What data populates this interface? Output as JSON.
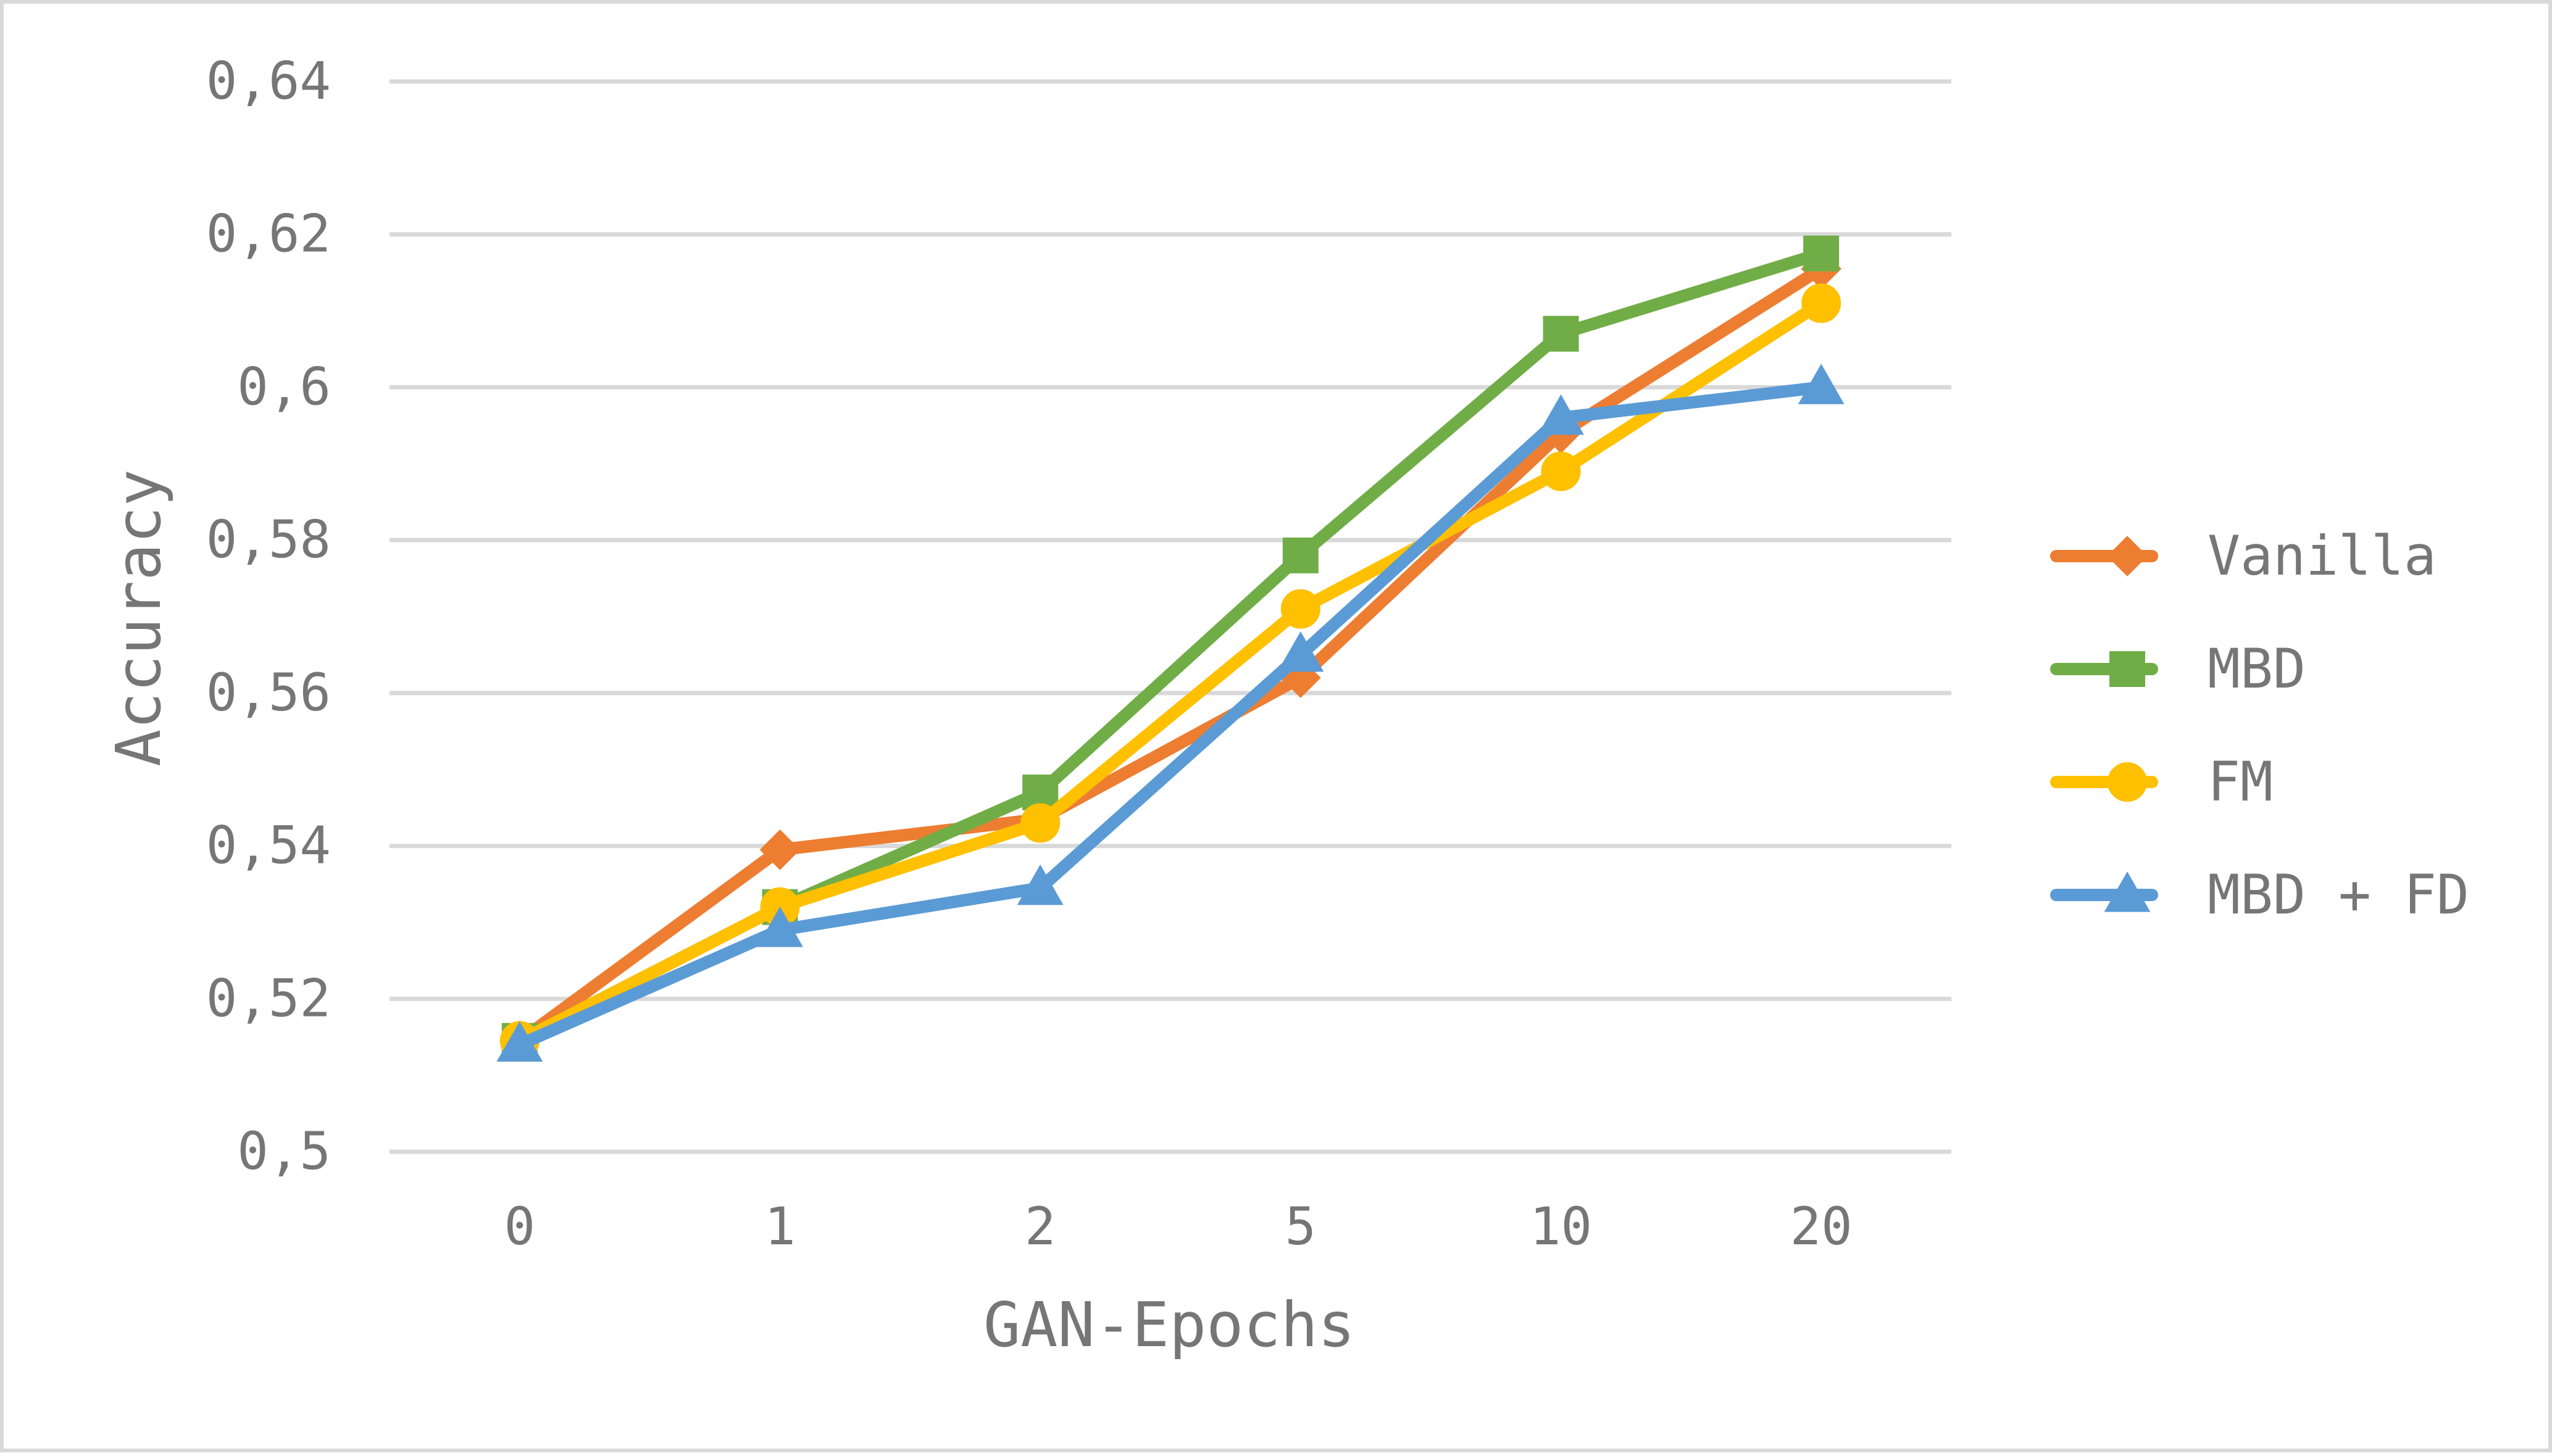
{
  "chart_data": {
    "type": "line",
    "title": "",
    "xlabel": "GAN-Epochs",
    "ylabel": "Accuracy",
    "categories": [
      "0",
      "1",
      "2",
      "5",
      "10",
      "20"
    ],
    "ylim": [
      0.5,
      0.64
    ],
    "yticks": [
      0.5,
      0.52,
      0.54,
      0.56,
      0.58,
      0.6,
      0.62,
      0.64
    ],
    "ytick_labels": [
      "0,5",
      "0,52",
      "0,54",
      "0,56",
      "0,58",
      "0,6",
      "0,62",
      "0,64"
    ],
    "grid": true,
    "legend_position": "right",
    "series": [
      {
        "name": "Vanilla",
        "color": "#ED7D31",
        "marker": "diamond",
        "values": [
          0.5145,
          0.5395,
          0.5435,
          0.562,
          0.594,
          0.6155
        ]
      },
      {
        "name": "MBD",
        "color": "#70AD47",
        "marker": "square",
        "values": [
          0.5145,
          0.532,
          0.547,
          0.578,
          0.607,
          0.6175
        ]
      },
      {
        "name": "FM",
        "color": "#FFC000",
        "marker": "circle",
        "values": [
          0.5145,
          0.532,
          0.543,
          0.571,
          0.589,
          0.611
        ]
      },
      {
        "name": "MBD + FD",
        "color": "#5B9BD5",
        "marker": "triangle",
        "values": [
          0.514,
          0.529,
          0.5345,
          0.565,
          0.596,
          0.6
        ]
      }
    ]
  }
}
